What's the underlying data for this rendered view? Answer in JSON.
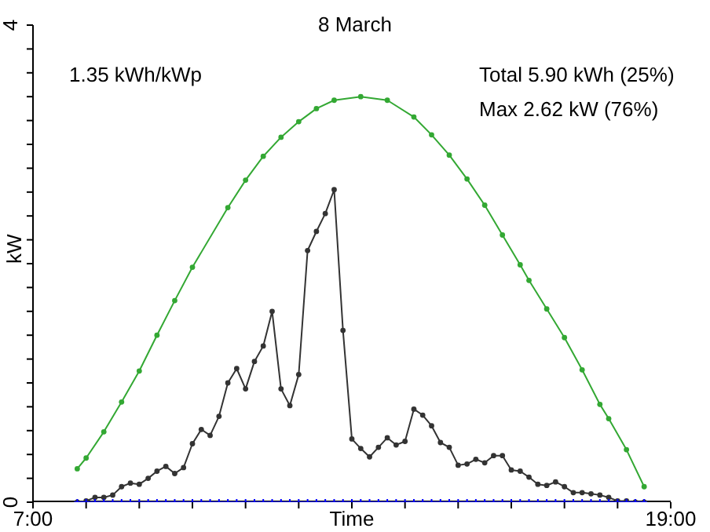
{
  "chart_data": {
    "type": "line",
    "title": "8 March",
    "xlabel": "Time",
    "ylabel": "kW",
    "annotations": [
      "1.35 kWh/kWp",
      "Total 5.90 kWh (25%)",
      "Max 2.62 kW (76%)"
    ],
    "x": [
      7.833,
      8,
      8.167,
      8.333,
      8.5,
      8.667,
      8.833,
      9,
      9.167,
      9.333,
      9.5,
      9.667,
      9.833,
      10,
      10.167,
      10.333,
      10.5,
      10.667,
      10.833,
      11,
      11.167,
      11.333,
      11.5,
      11.667,
      11.833,
      12,
      12.167,
      12.333,
      12.5,
      12.667,
      12.833,
      13,
      13.167,
      13.333,
      13.5,
      13.667,
      13.833,
      14,
      14.167,
      14.333,
      14.5,
      14.667,
      14.833,
      15,
      15.167,
      15.333,
      15.5,
      15.667,
      15.833,
      16,
      16.167,
      16.333,
      16.5,
      16.667,
      16.833,
      17,
      17.167,
      17.333,
      17.5,
      17.667,
      17.833,
      18,
      18.167,
      18.333,
      18.5
    ],
    "series": [
      {
        "color": "#33a833",
        "marker": "circle",
        "x": [
          7.833,
          8,
          8.333,
          8.667,
          9,
          9.333,
          9.667,
          10,
          10.667,
          11,
          11.333,
          11.667,
          12,
          12.333,
          12.667,
          13.167,
          13.667,
          14.167,
          14.5,
          14.833,
          15.167,
          15.5,
          15.833,
          16.167,
          16.333,
          16.667,
          17,
          17.333,
          17.667,
          17.833,
          18.167,
          18.5
        ],
        "values": [
          0.28,
          0.37,
          0.59,
          0.84,
          1.1,
          1.4,
          1.69,
          1.97,
          2.47,
          2.7,
          2.9,
          3.06,
          3.19,
          3.3,
          3.37,
          3.4,
          3.37,
          3.23,
          3.08,
          2.91,
          2.71,
          2.49,
          2.24,
          1.99,
          1.86,
          1.62,
          1.38,
          1.11,
          0.82,
          0.7,
          0.44,
          0.13
        ]
      },
      {
        "color": "#333333",
        "marker": "circle",
        "values": [
          0,
          0.01,
          0.04,
          0.04,
          0.06,
          0.13,
          0.16,
          0.15,
          0.2,
          0.26,
          0.3,
          0.24,
          0.29,
          0.49,
          0.61,
          0.56,
          0.72,
          1.0,
          1.12,
          0.95,
          1.18,
          1.31,
          1.6,
          0.95,
          0.81,
          1.07,
          2.11,
          2.27,
          2.42,
          2.62,
          1.44,
          0.53,
          0.45,
          0.38,
          0.46,
          0.54,
          0.48,
          0.51,
          0.78,
          0.73,
          0.64,
          0.5,
          0.46,
          0.31,
          0.32,
          0.36,
          0.33,
          0.39,
          0.39,
          0.27,
          0.26,
          0.21,
          0.15,
          0.14,
          0.17,
          0.13,
          0.08,
          0.08,
          0.07,
          0.06,
          0.04,
          0.01,
          0.01,
          0,
          0
        ]
      },
      {
        "color": "#0000ff",
        "marker": "cross",
        "values": [
          0,
          0,
          0,
          0,
          0,
          0,
          0,
          0,
          0,
          0,
          0,
          0,
          0,
          0,
          0,
          0,
          0,
          0,
          0,
          0,
          0,
          0,
          0,
          0,
          0,
          0,
          0,
          0,
          0,
          0,
          0,
          0,
          0,
          0,
          0,
          0,
          0,
          0,
          0,
          0,
          0,
          0,
          0,
          0,
          0,
          0,
          0,
          0,
          0,
          0,
          0,
          0,
          0,
          0,
          0,
          0,
          0,
          0,
          0,
          0,
          0,
          0,
          0,
          0,
          0
        ]
      }
    ],
    "xlim": [
      7,
      19
    ],
    "xticks": [
      {
        "value": 7,
        "label": "7:00"
      },
      {
        "value": 8,
        "label": null
      },
      {
        "value": 9,
        "label": null
      },
      {
        "value": 10,
        "label": null
      },
      {
        "value": 11,
        "label": null
      },
      {
        "value": 12,
        "label": null
      },
      {
        "value": 13,
        "label": null
      },
      {
        "value": 14,
        "label": null
      },
      {
        "value": 15,
        "label": null
      },
      {
        "value": 16,
        "label": null
      },
      {
        "value": 17,
        "label": null
      },
      {
        "value": 18,
        "label": null
      },
      {
        "value": 19,
        "label": "19:00"
      }
    ],
    "ylim": [
      0,
      4
    ],
    "yticks": [
      0,
      {
        "value": 0.2,
        "label": null
      },
      {
        "value": 0.4,
        "label": null
      },
      {
        "value": 0.6,
        "label": null
      },
      {
        "value": 0.8,
        "label": null
      },
      {
        "value": 1,
        "label": null
      },
      {
        "value": 1.2,
        "label": null
      },
      {
        "value": 1.4,
        "label": null
      },
      {
        "value": 1.6,
        "label": null
      },
      {
        "value": 1.8,
        "label": null
      },
      {
        "value": 2,
        "label": null
      },
      {
        "value": 2.2,
        "label": null
      },
      {
        "value": 2.4,
        "label": null
      },
      {
        "value": 2.6,
        "label": null
      },
      {
        "value": 2.8,
        "label": null
      },
      {
        "value": 3,
        "label": null
      },
      {
        "value": 3.2,
        "label": null
      },
      {
        "value": 3.4,
        "label": null
      },
      {
        "value": 3.6,
        "label": null
      },
      {
        "value": 3.8,
        "label": null
      },
      4
    ],
    "grid": false,
    "legend": false
  }
}
